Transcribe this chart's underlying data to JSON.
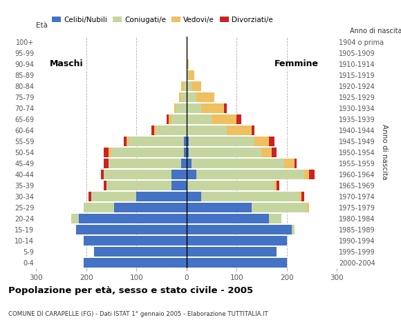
{
  "age_groups": [
    "0-4",
    "5-9",
    "10-14",
    "15-19",
    "20-24",
    "25-29",
    "30-34",
    "35-39",
    "40-44",
    "45-49",
    "50-54",
    "55-59",
    "60-64",
    "65-69",
    "70-74",
    "75-79",
    "80-84",
    "85-89",
    "90-94",
    "95-99",
    "100+"
  ],
  "birth_years": [
    "2000-2004",
    "1995-1999",
    "1990-1994",
    "1985-1989",
    "1980-1984",
    "1975-1979",
    "1970-1974",
    "1965-1969",
    "1960-1964",
    "1955-1959",
    "1950-1954",
    "1945-1949",
    "1940-1944",
    "1935-1939",
    "1930-1934",
    "1925-1929",
    "1920-1924",
    "1915-1919",
    "1910-1914",
    "1905-1909",
    "1904 o prima"
  ],
  "males": {
    "celibe": [
      205,
      185,
      205,
      220,
      215,
      145,
      100,
      30,
      30,
      10,
      5,
      5,
      0,
      0,
      0,
      0,
      0,
      0,
      0,
      0,
      0
    ],
    "coniugato": [
      0,
      0,
      0,
      0,
      15,
      60,
      90,
      130,
      135,
      145,
      145,
      110,
      60,
      30,
      20,
      10,
      5,
      0,
      0,
      0,
      0
    ],
    "vedovo": [
      0,
      0,
      0,
      0,
      0,
      0,
      0,
      0,
      0,
      0,
      5,
      5,
      5,
      5,
      5,
      5,
      5,
      0,
      0,
      0,
      0
    ],
    "divorziato": [
      0,
      0,
      0,
      0,
      0,
      0,
      5,
      5,
      5,
      10,
      10,
      5,
      5,
      5,
      0,
      0,
      0,
      0,
      0,
      0,
      0
    ]
  },
  "females": {
    "nubile": [
      200,
      180,
      200,
      210,
      165,
      130,
      30,
      0,
      20,
      10,
      5,
      5,
      0,
      0,
      0,
      0,
      0,
      0,
      0,
      0,
      0
    ],
    "coniugata": [
      0,
      0,
      0,
      5,
      25,
      110,
      195,
      175,
      215,
      185,
      145,
      130,
      80,
      50,
      30,
      20,
      10,
      5,
      0,
      0,
      0
    ],
    "vedova": [
      0,
      0,
      0,
      0,
      0,
      5,
      5,
      5,
      10,
      20,
      20,
      30,
      50,
      50,
      45,
      35,
      20,
      10,
      5,
      0,
      0
    ],
    "divorziata": [
      0,
      0,
      0,
      0,
      0,
      0,
      5,
      5,
      10,
      5,
      10,
      10,
      5,
      10,
      5,
      0,
      0,
      0,
      0,
      0,
      0
    ]
  },
  "colors": {
    "celibe": "#4472c4",
    "coniugato": "#c5d5a0",
    "vedovo": "#f0c060",
    "divorziato": "#cc2222"
  },
  "xlim": 300,
  "title": "Popolazione per età, sesso e stato civile - 2005",
  "subtitle": "COMUNE DI CARAPELLE (FG) - Dati ISTAT 1° gennaio 2005 - Elaborazione TUTTITALIA.IT",
  "legend_labels": [
    "Celibi/Nubili",
    "Coniugati/e",
    "Vedovi/e",
    "Divorziati/e"
  ],
  "bg_color": "#ffffff",
  "bar_height": 0.85
}
